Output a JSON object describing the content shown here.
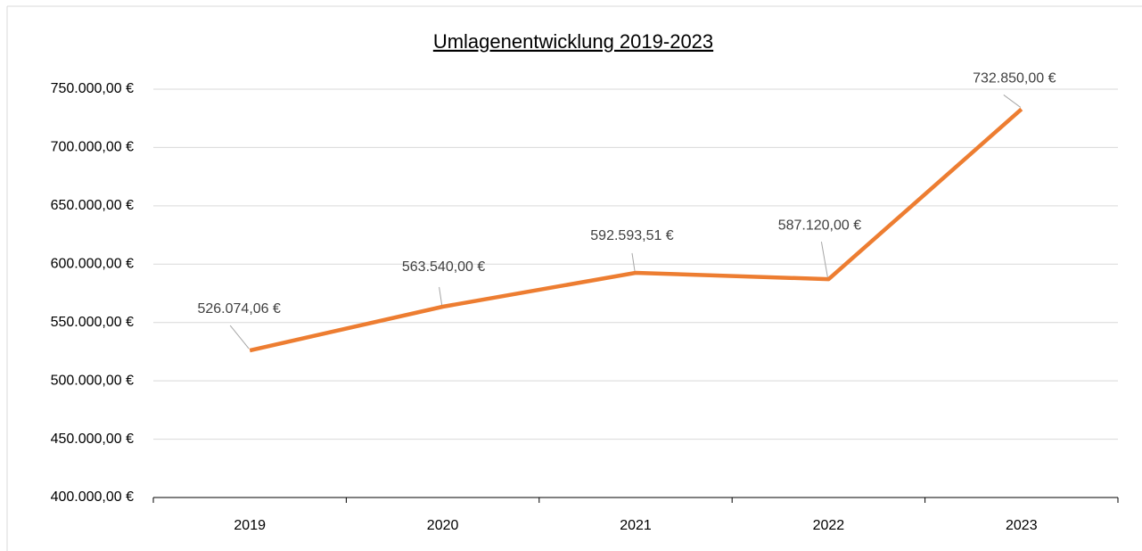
{
  "chart_data": {
    "type": "line",
    "title": "Umlagenentwicklung 2019-2023",
    "categories": [
      "2019",
      "2020",
      "2021",
      "2022",
      "2023"
    ],
    "series": [
      {
        "color": "#ed7d31",
        "values": [
          526074.06,
          563540.0,
          592593.51,
          587120.0,
          732850.0
        ],
        "value_labels": [
          "526.074,06 €",
          "563.540,00 €",
          "592.593,51 €",
          "587.120,00 €",
          "732.850,00 €"
        ]
      }
    ],
    "ylim": [
      400000,
      750000
    ],
    "yticks": [
      {
        "value": 400000,
        "label": "400.000,00 €"
      },
      {
        "value": 450000,
        "label": "450.000,00 €"
      },
      {
        "value": 500000,
        "label": "500.000,00 €"
      },
      {
        "value": 550000,
        "label": "550.000,00 €"
      },
      {
        "value": 600000,
        "label": "600.000,00 €"
      },
      {
        "value": 650000,
        "label": "650.000,00 €"
      },
      {
        "value": 700000,
        "label": "700.000,00 €"
      },
      {
        "value": 750000,
        "label": "750.000,00 €"
      }
    ],
    "grid": true
  }
}
